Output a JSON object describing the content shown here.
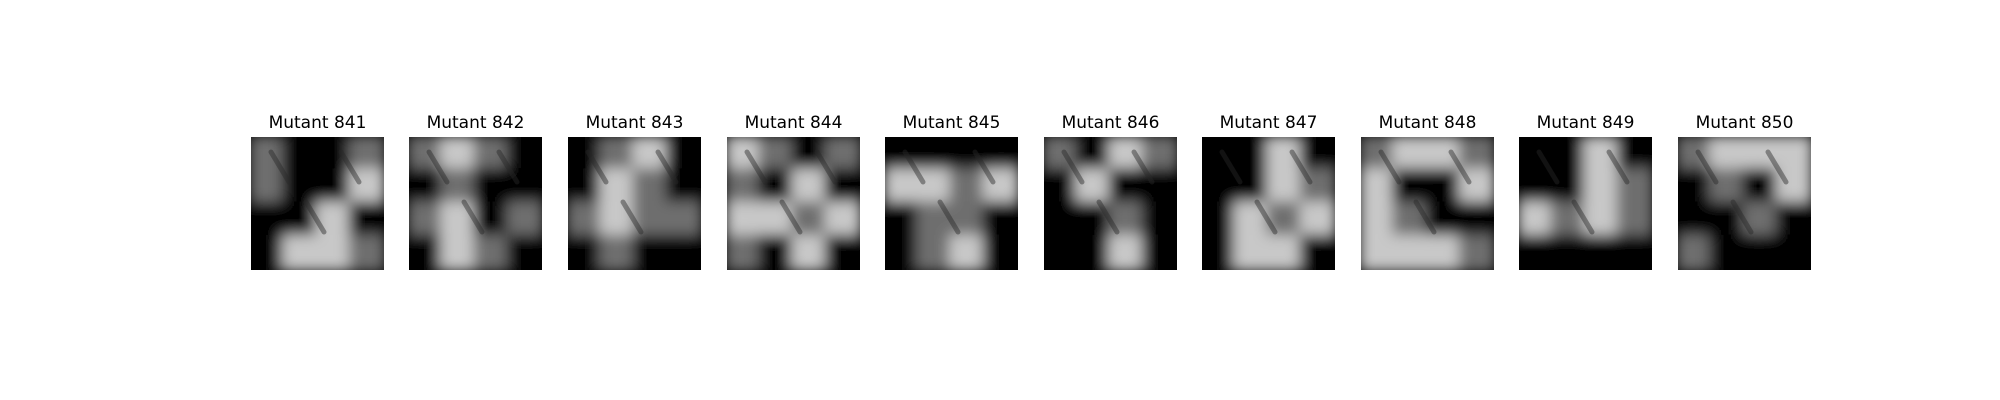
{
  "panels": [
    {
      "title": "Mutant 841"
    },
    {
      "title": "Mutant 842"
    },
    {
      "title": "Mutant 843"
    },
    {
      "title": "Mutant 844"
    },
    {
      "title": "Mutant 845"
    },
    {
      "title": "Mutant 846"
    },
    {
      "title": "Mutant 847"
    },
    {
      "title": "Mutant 848"
    },
    {
      "title": "Mutant 849"
    },
    {
      "title": "Mutant 850"
    }
  ]
}
